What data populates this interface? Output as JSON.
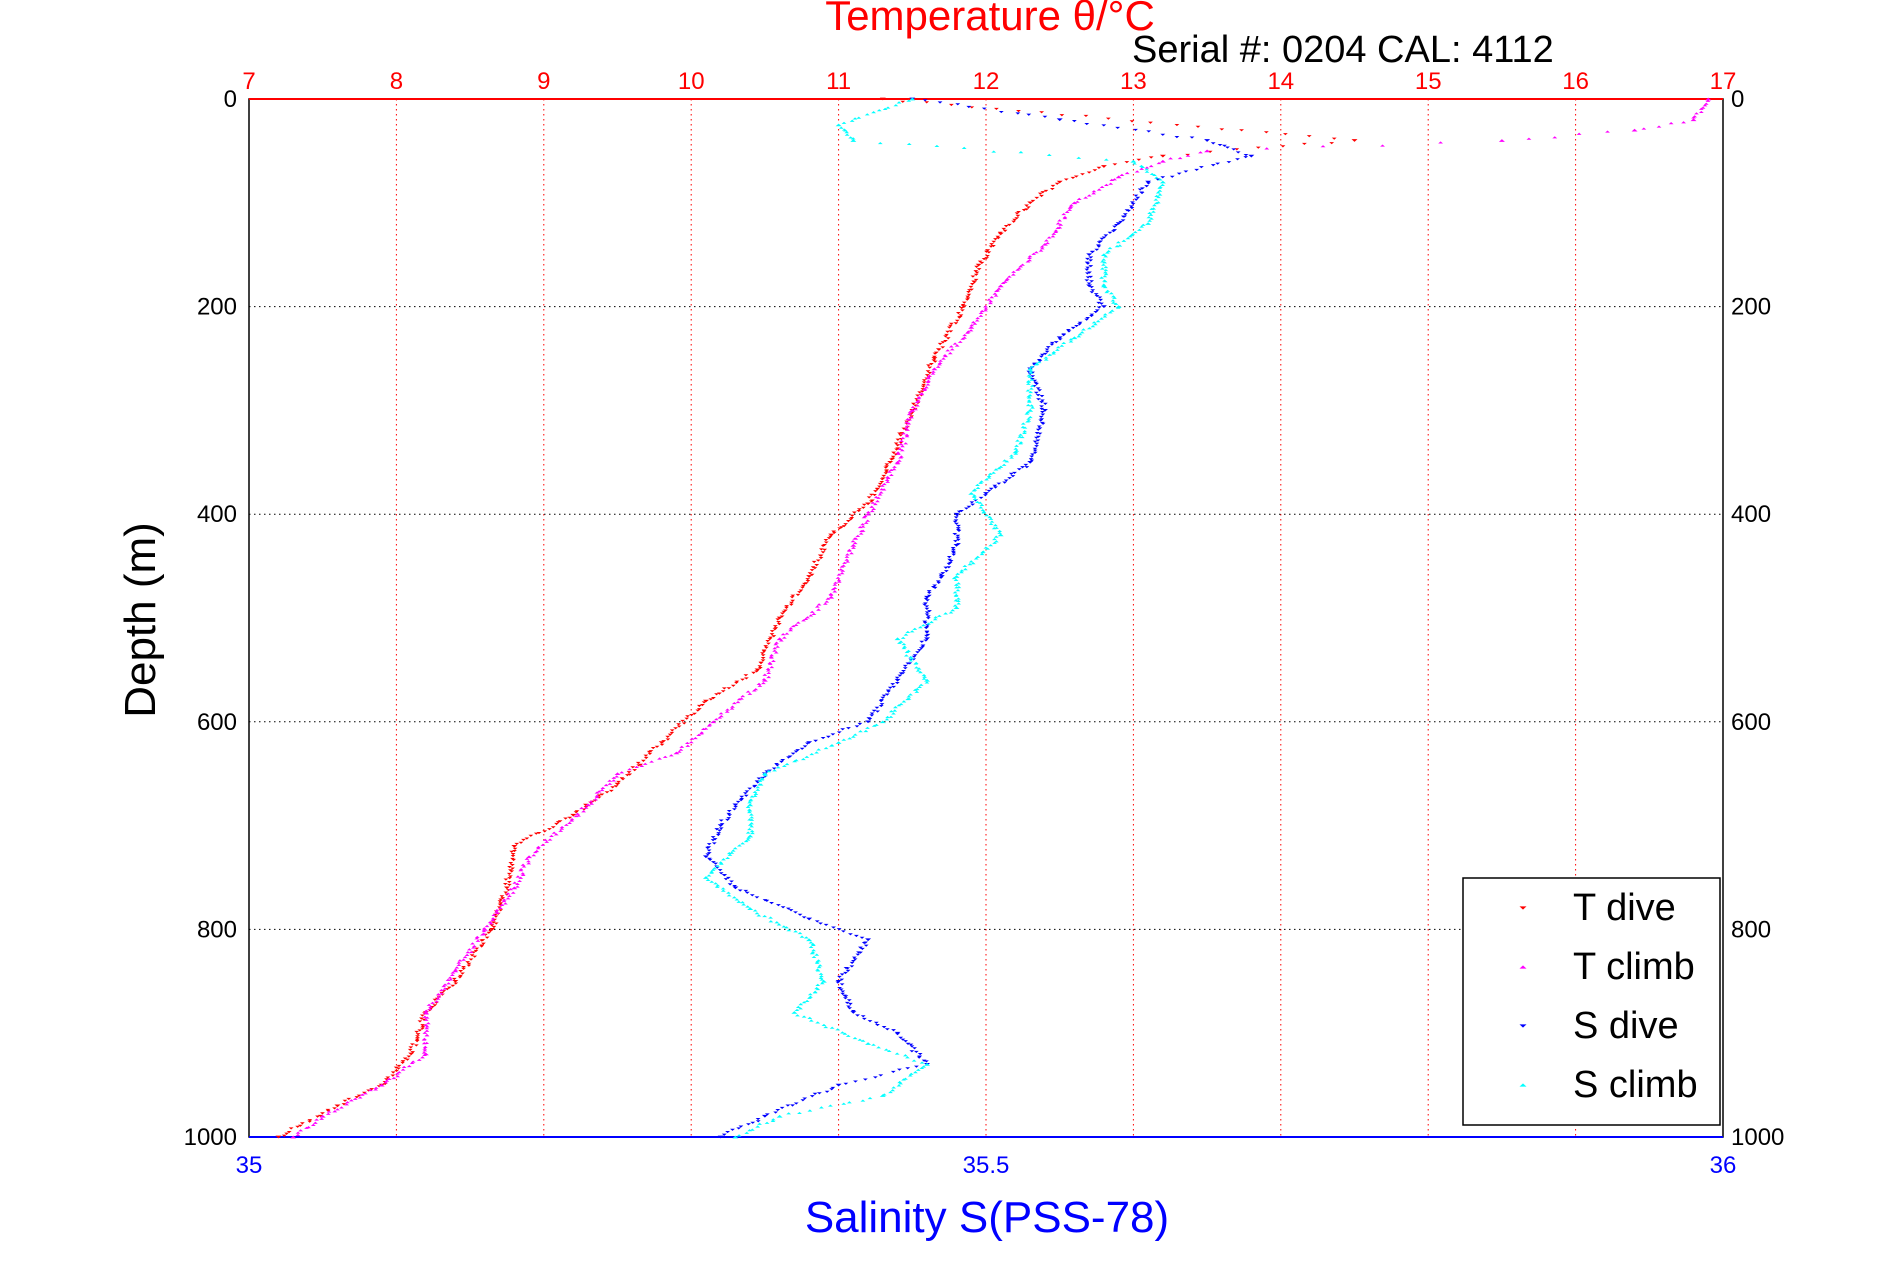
{
  "chart_data": {
    "type": "scatter",
    "title_top": "Temperature θ/°C",
    "subtitle": "Serial #: 0204  CAL: 4112",
    "xlabel_bottom": "Salinity S(PSS-78)",
    "ylabel": "Depth (m)",
    "x_top": {
      "name": "Temperature",
      "range": [
        7,
        17
      ],
      "ticks": [
        "7",
        "8",
        "9",
        "10",
        "11",
        "12",
        "13",
        "14",
        "15",
        "16",
        "17"
      ]
    },
    "x_bottom": {
      "name": "Salinity",
      "range": [
        35,
        36
      ],
      "ticks": [
        "35",
        "35.5",
        "36"
      ]
    },
    "y": {
      "name": "Depth",
      "range": [
        0,
        1000
      ],
      "inverted": true,
      "ticks": [
        "0",
        "200",
        "400",
        "600",
        "800",
        "1000"
      ]
    },
    "grid": true,
    "legend_position": "bottom-right",
    "series": [
      {
        "name": "T dive",
        "axis": "top",
        "color": "#ff0000",
        "marker": "triangle-down",
        "points": [
          [
            11.3,
            0
          ],
          [
            14.5,
            40
          ],
          [
            13.2,
            55
          ],
          [
            12.8,
            65
          ],
          [
            12.5,
            80
          ],
          [
            12.3,
            100
          ],
          [
            12.1,
            130
          ],
          [
            11.95,
            160
          ],
          [
            11.85,
            200
          ],
          [
            11.65,
            250
          ],
          [
            11.5,
            300
          ],
          [
            11.35,
            350
          ],
          [
            11.2,
            390
          ],
          [
            10.95,
            420
          ],
          [
            10.8,
            460
          ],
          [
            10.6,
            500
          ],
          [
            10.45,
            550
          ],
          [
            10.1,
            580
          ],
          [
            9.8,
            620
          ],
          [
            9.5,
            660
          ],
          [
            9.2,
            690
          ],
          [
            8.8,
            720
          ],
          [
            8.75,
            760
          ],
          [
            8.65,
            800
          ],
          [
            8.4,
            850
          ],
          [
            8.2,
            880
          ],
          [
            8.1,
            920
          ],
          [
            7.9,
            950
          ],
          [
            7.6,
            970
          ],
          [
            7.2,
            1000
          ]
        ]
      },
      {
        "name": "T climb",
        "axis": "top",
        "color": "#ff00ff",
        "marker": "triangle-up",
        "points": [
          [
            16.9,
            0
          ],
          [
            16.8,
            20
          ],
          [
            16.4,
            30
          ],
          [
            15.5,
            40
          ],
          [
            13.5,
            50
          ],
          [
            13.2,
            60
          ],
          [
            12.9,
            75
          ],
          [
            12.6,
            100
          ],
          [
            12.4,
            140
          ],
          [
            12.1,
            180
          ],
          [
            11.9,
            220
          ],
          [
            11.65,
            260
          ],
          [
            11.5,
            300
          ],
          [
            11.4,
            350
          ],
          [
            11.2,
            400
          ],
          [
            11.1,
            430
          ],
          [
            10.95,
            480
          ],
          [
            10.6,
            520
          ],
          [
            10.5,
            560
          ],
          [
            10.15,
            600
          ],
          [
            9.9,
            630
          ],
          [
            9.5,
            650
          ],
          [
            9.3,
            680
          ],
          [
            8.9,
            730
          ],
          [
            8.8,
            760
          ],
          [
            8.6,
            800
          ],
          [
            8.4,
            840
          ],
          [
            8.2,
            880
          ],
          [
            8.2,
            920
          ],
          [
            7.9,
            950
          ],
          [
            7.5,
            980
          ],
          [
            7.3,
            1000
          ]
        ]
      },
      {
        "name": "S dive",
        "axis": "bottom",
        "color": "#0000ff",
        "marker": "triangle-down",
        "points": [
          [
            35.45,
            0
          ],
          [
            35.55,
            20
          ],
          [
            35.65,
            40
          ],
          [
            35.68,
            55
          ],
          [
            35.61,
            80
          ],
          [
            35.59,
            120
          ],
          [
            35.57,
            150
          ],
          [
            35.57,
            180
          ],
          [
            35.58,
            200
          ],
          [
            35.55,
            230
          ],
          [
            35.53,
            260
          ],
          [
            35.54,
            300
          ],
          [
            35.53,
            350
          ],
          [
            35.5,
            380
          ],
          [
            35.48,
            400
          ],
          [
            35.48,
            430
          ],
          [
            35.47,
            460
          ],
          [
            35.46,
            480
          ],
          [
            35.46,
            520
          ],
          [
            35.44,
            560
          ],
          [
            35.42,
            600
          ],
          [
            35.38,
            620
          ],
          [
            35.35,
            650
          ],
          [
            35.33,
            680
          ],
          [
            35.32,
            700
          ],
          [
            35.31,
            730
          ],
          [
            35.33,
            760
          ],
          [
            35.38,
            790
          ],
          [
            35.42,
            810
          ],
          [
            35.4,
            850
          ],
          [
            35.41,
            880
          ],
          [
            35.44,
            900
          ],
          [
            35.46,
            930
          ],
          [
            35.4,
            950
          ],
          [
            35.35,
            980
          ],
          [
            35.32,
            1000
          ]
        ]
      },
      {
        "name": "S climb",
        "axis": "bottom",
        "color": "#00ffff",
        "marker": "triangle-up",
        "points": [
          [
            35.45,
            0
          ],
          [
            35.4,
            25
          ],
          [
            35.41,
            40
          ],
          [
            35.6,
            60
          ],
          [
            35.62,
            80
          ],
          [
            35.61,
            120
          ],
          [
            35.58,
            150
          ],
          [
            35.58,
            180
          ],
          [
            35.59,
            200
          ],
          [
            35.56,
            230
          ],
          [
            35.53,
            260
          ],
          [
            35.53,
            300
          ],
          [
            35.52,
            340
          ],
          [
            35.49,
            380
          ],
          [
            35.51,
            420
          ],
          [
            35.48,
            460
          ],
          [
            35.48,
            490
          ],
          [
            35.44,
            520
          ],
          [
            35.46,
            560
          ],
          [
            35.43,
            600
          ],
          [
            35.4,
            620
          ],
          [
            35.35,
            650
          ],
          [
            35.34,
            680
          ],
          [
            35.34,
            710
          ],
          [
            35.31,
            750
          ],
          [
            35.34,
            780
          ],
          [
            35.38,
            810
          ],
          [
            35.39,
            850
          ],
          [
            35.37,
            880
          ],
          [
            35.42,
            910
          ],
          [
            35.46,
            930
          ],
          [
            35.43,
            960
          ],
          [
            35.36,
            980
          ],
          [
            35.33,
            1000
          ]
        ]
      }
    ]
  }
}
